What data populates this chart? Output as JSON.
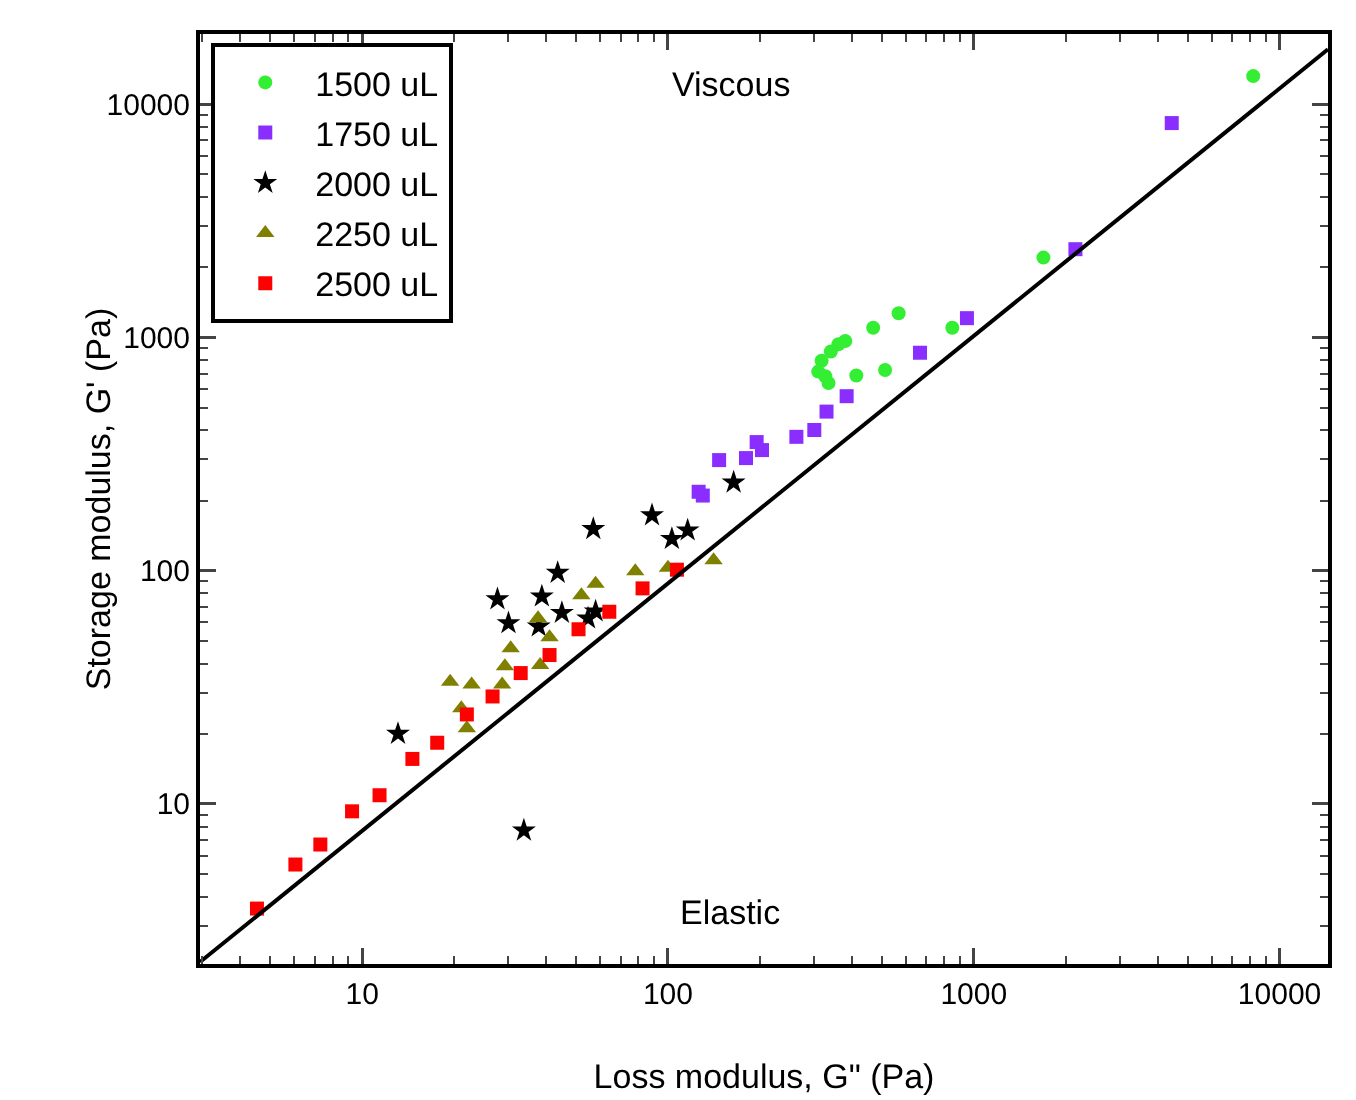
{
  "chart_data": {
    "type": "scatter",
    "xlabel": "Loss modulus, G\" (Pa)",
    "ylabel": "Storage modulus, G' (Pa)",
    "log": "xy",
    "grid": false,
    "legend": "top left",
    "xlim": [
      2.95,
      14400
    ],
    "ylim": [
      2.06,
      20000
    ],
    "xticks": [
      10,
      100,
      1000,
      10000
    ],
    "yticks": [
      10,
      100,
      1000,
      10000
    ],
    "annotations": [
      "Viscous",
      "Elastic"
    ],
    "series": [
      {
        "name": "1500 uL",
        "color": "#33ee33",
        "marker": "circle",
        "x": [
          8200,
          1690,
          851,
          568,
          513,
          469,
          413,
          380,
          361,
          341,
          318,
          310,
          327,
          335
        ],
        "values": [
          13200,
          2200,
          1100,
          1270,
          725,
          1100,
          687,
          966,
          935,
          871,
          795,
          714,
          682,
          638
        ]
      },
      {
        "name": "1750 uL",
        "color": "#8a2eff",
        "marker": "square",
        "x": [
          4440,
          2150,
          950,
          667,
          384,
          330,
          301,
          263,
          203,
          195,
          180,
          147,
          126,
          130
        ],
        "values": [
          8300,
          2390,
          1210,
          860,
          560,
          481,
          401,
          375,
          329,
          356,
          304,
          298,
          218,
          210
        ]
      },
      {
        "name": "2000 uL",
        "color": "#000000",
        "marker": "star",
        "x": [
          13.1,
          27.7,
          30.1,
          33.8,
          37.8,
          38.7,
          43.6,
          45,
          54.8,
          58,
          57,
          88.7,
          103,
          116,
          164
        ],
        "values": [
          20,
          75.5,
          59.6,
          7.7,
          57.7,
          77.6,
          98,
          66,
          62.5,
          67,
          151,
          173,
          137,
          149,
          239
        ]
      },
      {
        "name": "2250 uL",
        "color": "#808000",
        "marker": "triangle",
        "x": [
          19.4,
          22.8,
          21.1,
          22,
          28.7,
          29.3,
          30.6,
          38.2,
          41,
          37.6,
          52.1,
          58,
          78.2,
          100,
          141
        ],
        "values": [
          33.4,
          32.5,
          25.7,
          21.1,
          32.5,
          38.9,
          46.5,
          39.4,
          51.9,
          62.5,
          78.5,
          87.9,
          99.5,
          103,
          111
        ]
      },
      {
        "name": "2500 uL",
        "color": "#ff0000",
        "marker": "square",
        "x": [
          4.53,
          6.05,
          7.3,
          9.27,
          11.4,
          14.6,
          17.6,
          22,
          26.7,
          33,
          41,
          51,
          64.3,
          82.6,
          107
        ],
        "values": [
          3.56,
          5.5,
          6.7,
          9.3,
          10.9,
          15.6,
          18.3,
          24.2,
          28.9,
          36.4,
          43.5,
          56.1,
          66.7,
          84,
          101
        ]
      },
      {
        "type": "line",
        "color": "#000000",
        "marker": "none",
        "line_style": "solid",
        "x": [
          2.95,
          14400
        ],
        "values": [
          2.1,
          17200
        ]
      }
    ]
  }
}
